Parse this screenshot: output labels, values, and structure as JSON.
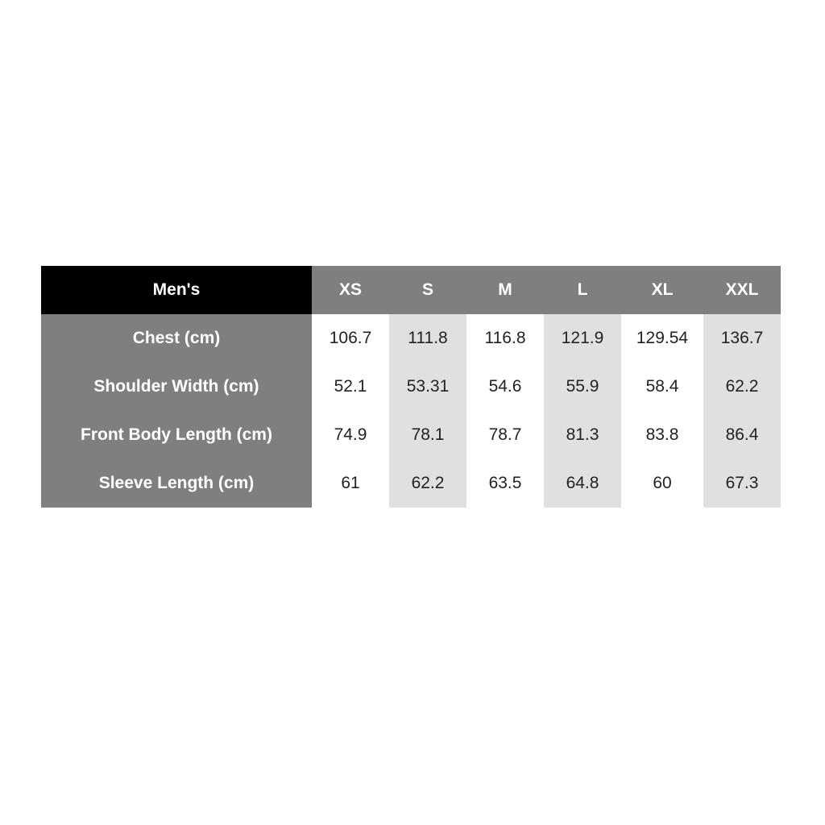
{
  "table": {
    "title": "Men's",
    "sizes": [
      "XS",
      "S",
      "M",
      "L",
      "XL",
      "XXL"
    ],
    "rows": [
      {
        "label": "Chest (cm)",
        "values": [
          "106.7",
          "111.8",
          "116.8",
          "121.9",
          "129.54",
          "136.7"
        ]
      },
      {
        "label": "Shoulder Width (cm)",
        "values": [
          "52.1",
          "53.31",
          "54.6",
          "55.9",
          "58.4",
          "62.2"
        ]
      },
      {
        "label": "Front Body Length (cm)",
        "values": [
          "74.9",
          "78.1",
          "78.7",
          "81.3",
          "83.8",
          "86.4"
        ]
      },
      {
        "label": "Sleeve Length (cm)",
        "values": [
          "61",
          "62.2",
          "63.5",
          "64.8",
          "60",
          "67.3"
        ]
      }
    ]
  },
  "colors": {
    "header_gray": "#7f807d",
    "title_bg": "#000000",
    "shade": "#e0e0e0"
  }
}
